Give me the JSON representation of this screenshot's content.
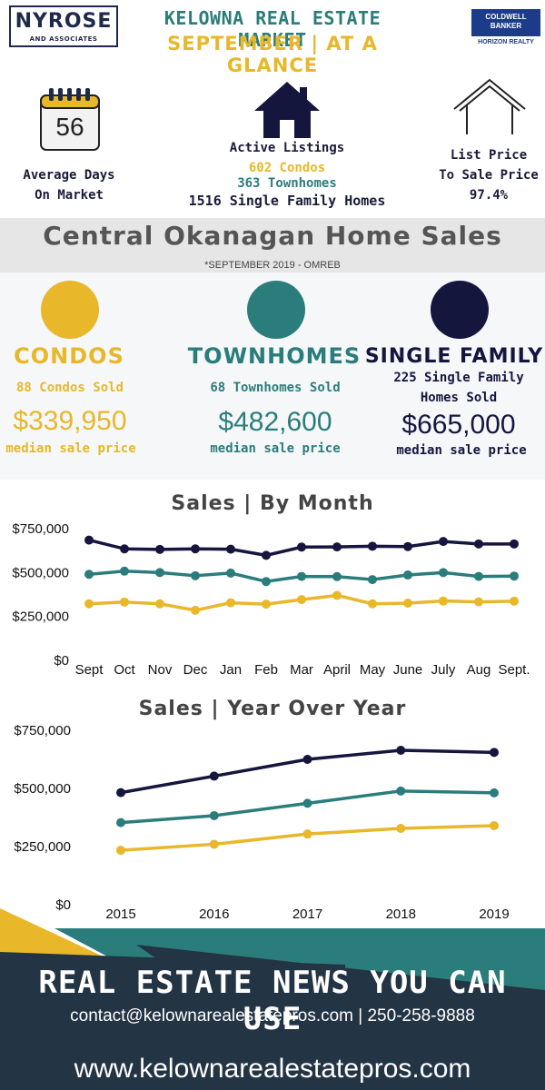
{
  "header": {
    "logo_left": "NYROSE",
    "logo_left_sub": "AND ASSOCIATES",
    "title_line1": "KELOWNA REAL ESTATE MARKET",
    "title_line2": "SEPTEMBER | AT A GLANCE",
    "logo_right_line1": "COLDWELL",
    "logo_right_line2": "BANKER",
    "logo_right_sub": "HORIZON REALTY"
  },
  "stats": {
    "days_value": "56",
    "days_label1": "Average Days",
    "days_label2": "On Market",
    "listings_label": "Active Listings",
    "listings_condos": "602 Condos",
    "listings_townhomes": "363 Townhomes",
    "listings_single": "1516 Single Family Homes",
    "ratio_label1": "List Price",
    "ratio_label2": "To Sale Price",
    "ratio_value": "97.4%"
  },
  "band": {
    "title": "Central Okanagan Home Sales",
    "subtitle": "*SEPTEMBER  2019 - OMREB"
  },
  "types": [
    {
      "name": "CONDOS",
      "sold": "88 Condos Sold",
      "sold2": "",
      "price": "$339,950",
      "price_label": "median sale price"
    },
    {
      "name": "TOWNHOMES",
      "sold": "68 Townhomes Sold",
      "sold2": "",
      "price": "$482,600",
      "price_label": "median sale price"
    },
    {
      "name": "SINGLE FAMILY",
      "sold": "225 Single Family",
      "sold2": "Homes Sold",
      "price": "$665,000",
      "price_label": "median sale price"
    }
  ],
  "colors": {
    "condos": "#e8b72a",
    "townhomes": "#2a7d7b",
    "single": "#14163e"
  },
  "chart_data": [
    {
      "type": "line",
      "title": "Sales | By Month",
      "categories": [
        "Sept",
        "Oct",
        "Nov",
        "Dec",
        "Jan",
        "Feb",
        "Mar",
        "April",
        "May",
        "June",
        "July",
        "Aug",
        "Sept."
      ],
      "yticks": [
        "$750,000",
        "$500,000",
        "$250,000",
        "$0"
      ],
      "ylim": [
        0,
        750000
      ],
      "grid": false,
      "series": [
        {
          "key": "single",
          "values": [
            685000,
            635000,
            632000,
            635000,
            633000,
            598000,
            645000,
            646000,
            650000,
            648000,
            677000,
            663000,
            663000
          ]
        },
        {
          "key": "townhomes",
          "values": [
            490000,
            508000,
            500000,
            482000,
            497000,
            449000,
            478000,
            477000,
            460000,
            486000,
            500000,
            478000,
            480000
          ]
        },
        {
          "key": "condos",
          "values": [
            322000,
            332000,
            322000,
            285000,
            328000,
            320000,
            346000,
            370000,
            322000,
            326000,
            338000,
            333000,
            337000
          ]
        }
      ]
    },
    {
      "type": "line",
      "title": "Sales | Year Over Year",
      "categories": [
        "2015",
        "2016",
        "2017",
        "2018",
        "2019"
      ],
      "yticks": [
        "$750,000",
        "$500,000",
        "$250,000",
        "$0"
      ],
      "ylim": [
        0,
        750000
      ],
      "grid": false,
      "series": [
        {
          "key": "single",
          "values": [
            482000,
            553000,
            625000,
            664000,
            655000
          ]
        },
        {
          "key": "townhomes",
          "values": [
            353000,
            383000,
            436000,
            489000,
            481000
          ]
        },
        {
          "key": "condos",
          "values": [
            234000,
            260000,
            304000,
            328000,
            340000
          ]
        }
      ]
    }
  ],
  "footer": {
    "headline": "REAL ESTATE NEWS YOU CAN USE",
    "contact": "contact@kelownarealestatepros.com | 250-258-9888",
    "website": "www.kelownarealestatepros.com"
  }
}
